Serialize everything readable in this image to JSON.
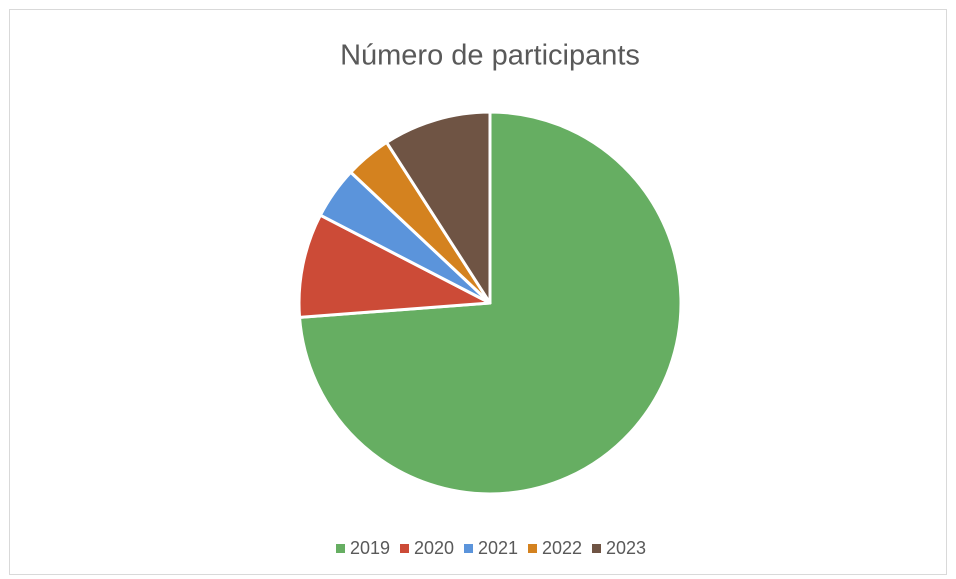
{
  "chart_data": {
    "type": "pie",
    "title": "Número de participants",
    "categories": [
      "2019",
      "2020",
      "2021",
      "2022",
      "2023"
    ],
    "values": [
      73.8,
      8.8,
      4.4,
      3.9,
      9.1
    ],
    "colors": [
      "#66ae62",
      "#cc4b37",
      "#5b94db",
      "#d4821f",
      "#6f5444"
    ],
    "legend": "bottom"
  }
}
